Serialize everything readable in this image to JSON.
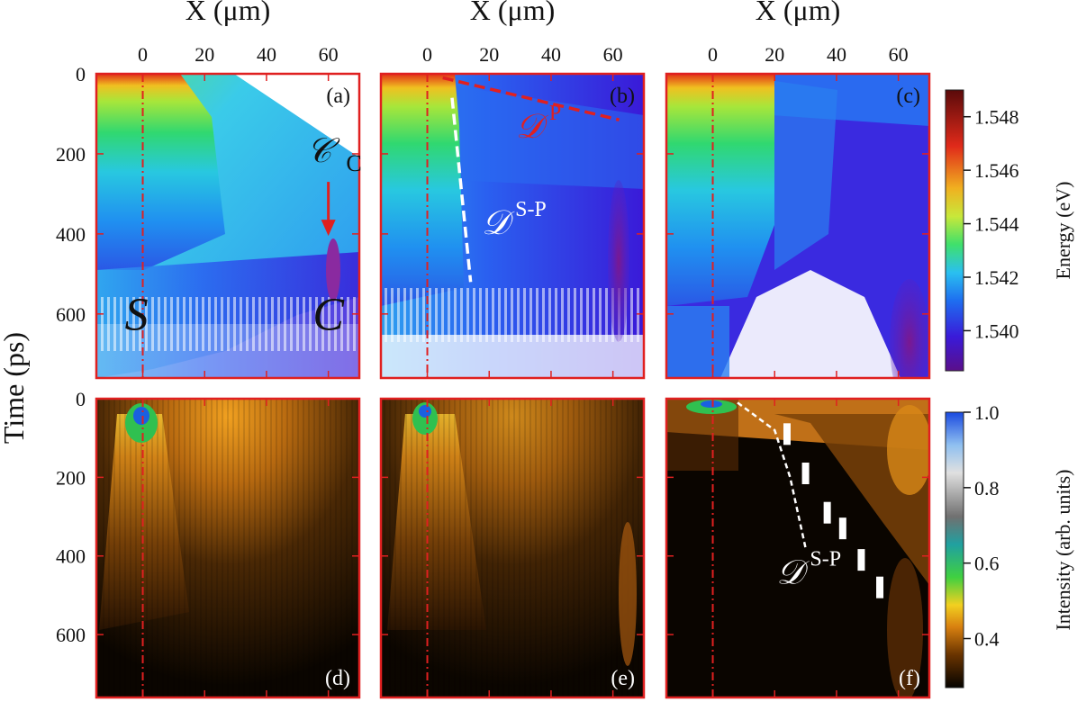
{
  "chart_data": {
    "type": "heatmap",
    "layout": "2x3 grid of space-time maps (streak images)",
    "shared_axes": {
      "xlabel": "X (μm)",
      "x_ticks": [
        0,
        20,
        40,
        60
      ],
      "xlim": [
        -15,
        70
      ],
      "ylabel": "Time (ps)",
      "y_ticks": [
        0,
        200,
        400,
        600
      ],
      "ylim": [
        0,
        760
      ]
    },
    "colorbars": [
      {
        "label": "Energy (eV)",
        "ticks": [
          "1.548",
          "1.546",
          "1.544",
          "1.542",
          "1.540"
        ],
        "range": [
          1.5385,
          1.549
        ],
        "colors": [
          "#5a0f8a",
          "#2b2de0",
          "#1e7ef0",
          "#3fd8e6",
          "#3fe06b",
          "#c8e83a",
          "#f0a020",
          "#e02a1a",
          "#5a0a0a"
        ]
      },
      {
        "label": "Intensity (arb. units)",
        "ticks": [
          "1.0",
          "0.8",
          "0.6",
          "0.4"
        ],
        "range": [
          0.27,
          1.0
        ],
        "colors": [
          "#050300",
          "#5a2c00",
          "#b86400",
          "#f0a020",
          "#f2f020",
          "#40d040",
          "#209090",
          "#808080",
          "#d8d8d8",
          "#90c0f0",
          "#1a5ae0"
        ]
      }
    ],
    "panels": [
      {
        "id": "a",
        "label": "(a)",
        "variable": "energy",
        "annotations": [
          {
            "text": "S",
            "at_um": -2,
            "at_ps": 640
          },
          {
            "text": "C",
            "at_um": 60,
            "at_ps": 640
          },
          {
            "text": "𝒞",
            "sub": "C",
            "at_um": 57,
            "at_ps": 220
          }
        ]
      },
      {
        "id": "b",
        "label": "(b)",
        "variable": "energy",
        "annotations": [
          {
            "text": "𝒟",
            "sup": "P",
            "color": "#e02020",
            "at_um": 33,
            "at_ps": 160
          },
          {
            "text": "𝒟",
            "sup": "S-P",
            "color": "#ffffff",
            "at_um": 22,
            "at_ps": 400
          }
        ]
      },
      {
        "id": "c",
        "label": "(c)",
        "variable": "energy",
        "annotations": []
      },
      {
        "id": "d",
        "label": "(d)",
        "variable": "intensity",
        "annotations": []
      },
      {
        "id": "e",
        "label": "(e)",
        "variable": "intensity",
        "annotations": []
      },
      {
        "id": "f",
        "label": "(f)",
        "variable": "intensity",
        "annotations": [
          {
            "text": "𝒟",
            "sup": "S-P",
            "color": "#ffffff",
            "at_um": 25,
            "at_ps": 470
          }
        ]
      }
    ],
    "guides": {
      "source_line_x_um": 0,
      "dP_line_b": {
        "from": [
          5,
          10
        ],
        "to": [
          62,
          115
        ],
        "units": [
          "μm",
          "ps"
        ]
      },
      "dSP_line_b": {
        "from": [
          8,
          60
        ],
        "to": [
          14,
          520
        ],
        "units": [
          "μm",
          "ps"
        ]
      },
      "dSP_line_f": {
        "points_um_ps": [
          [
            8,
            10
          ],
          [
            20,
            80
          ],
          [
            25,
            200
          ],
          [
            30,
            380
          ]
        ]
      },
      "white_dashes_f": {
        "points_um_ps": [
          [
            24,
            90
          ],
          [
            30,
            190
          ],
          [
            37,
            290
          ],
          [
            42,
            330
          ],
          [
            48,
            410
          ],
          [
            54,
            480
          ]
        ]
      }
    }
  }
}
